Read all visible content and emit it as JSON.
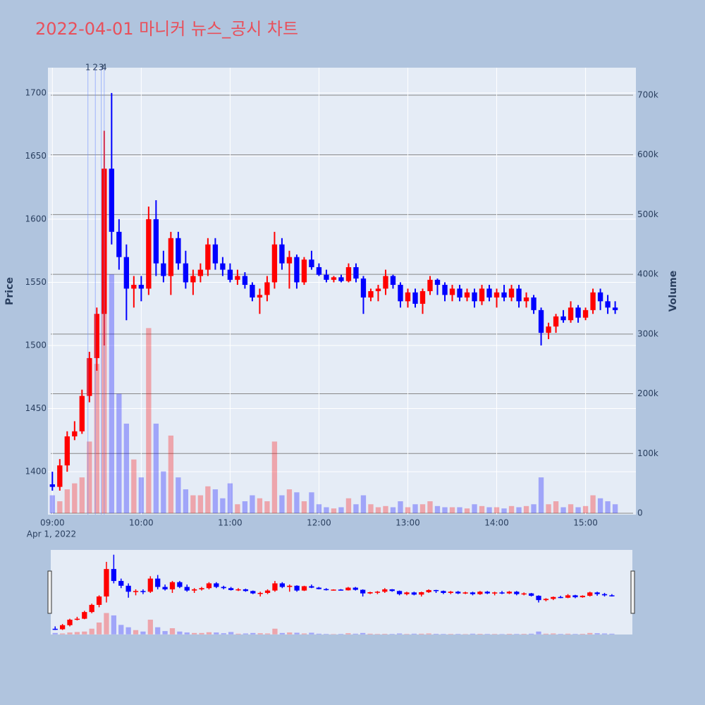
{
  "chart_data": {
    "type": "candlestick",
    "title": "2022-04-01 마니커 뉴스_공시 차트",
    "y_label": "Price",
    "y2_label": "Volume",
    "x_date_label": "Apr 1, 2022",
    "increasing_color": "#ff0000",
    "decreasing_color": "#0000ff",
    "xlim": [
      "08:57",
      "15:34"
    ],
    "xticks": [
      "09:00",
      "10:00",
      "11:00",
      "12:00",
      "13:00",
      "14:00",
      "15:00"
    ],
    "ylim": [
      1366,
      1720
    ],
    "yticks": [
      1400,
      1450,
      1500,
      1550,
      1600,
      1650,
      1700
    ],
    "y2lim": [
      -2400,
      746000
    ],
    "y2ticks": [
      0,
      {
        "value": 100000,
        "label": "100k"
      },
      {
        "value": 200000,
        "label": "200k"
      },
      {
        "value": 300000,
        "label": "300k"
      },
      {
        "value": 400000,
        "label": "400k"
      },
      {
        "value": 500000,
        "label": "500k"
      },
      {
        "value": 600000,
        "label": "600k"
      },
      {
        "value": 700000,
        "label": "700k"
      }
    ],
    "annotations": [
      {
        "x": "09:24",
        "text": "1"
      },
      {
        "x": "09:29",
        "text": "2"
      },
      {
        "x": "09:33",
        "text": "3"
      },
      {
        "x": "09:35",
        "text": "4"
      }
    ],
    "x": [
      "09:00",
      "09:05",
      "09:10",
      "09:15",
      "09:20",
      "09:25",
      "09:30",
      "09:35",
      "09:40",
      "09:45",
      "09:50",
      "09:55",
      "10:00",
      "10:05",
      "10:10",
      "10:15",
      "10:20",
      "10:25",
      "10:30",
      "10:35",
      "10:40",
      "10:45",
      "10:50",
      "10:55",
      "11:00",
      "11:05",
      "11:10",
      "11:15",
      "11:20",
      "11:25",
      "11:30",
      "11:35",
      "11:40",
      "11:45",
      "11:50",
      "11:55",
      "12:00",
      "12:05",
      "12:10",
      "12:15",
      "12:20",
      "12:25",
      "12:30",
      "12:35",
      "12:40",
      "12:45",
      "12:50",
      "12:55",
      "13:00",
      "13:05",
      "13:10",
      "13:15",
      "13:20",
      "13:25",
      "13:30",
      "13:35",
      "13:40",
      "13:45",
      "13:50",
      "13:55",
      "14:00",
      "14:05",
      "14:10",
      "14:15",
      "14:20",
      "14:25",
      "14:30",
      "14:35",
      "14:40",
      "14:45",
      "14:50",
      "14:55",
      "15:00",
      "15:05",
      "15:10",
      "15:15",
      "15:20"
    ],
    "open": [
      1390,
      1388,
      1405,
      1428,
      1432,
      1460,
      1490,
      1525,
      1640,
      1590,
      1570,
      1545,
      1548,
      1545,
      1600,
      1565,
      1555,
      1585,
      1565,
      1550,
      1555,
      1560,
      1580,
      1565,
      1560,
      1552,
      1555,
      1548,
      1538,
      1540,
      1550,
      1580,
      1565,
      1570,
      1550,
      1568,
      1562,
      1556,
      1552,
      1554,
      1551,
      1562,
      1553,
      1538,
      1543,
      1545,
      1555,
      1548,
      1535,
      1542,
      1533,
      1543,
      1552,
      1548,
      1540,
      1545,
      1538,
      1542,
      1535,
      1545,
      1538,
      1542,
      1538,
      1545,
      1535,
      1538,
      1528,
      1510,
      1515,
      1523,
      1520,
      1530,
      1522,
      1528,
      1542,
      1535,
      1530
    ],
    "high": [
      1400,
      1410,
      1432,
      1440,
      1465,
      1495,
      1530,
      1670,
      1700,
      1600,
      1580,
      1555,
      1555,
      1610,
      1615,
      1575,
      1590,
      1590,
      1575,
      1560,
      1565,
      1585,
      1585,
      1570,
      1565,
      1560,
      1558,
      1550,
      1545,
      1555,
      1590,
      1585,
      1575,
      1572,
      1570,
      1575,
      1565,
      1560,
      1555,
      1556,
      1565,
      1565,
      1555,
      1545,
      1548,
      1560,
      1556,
      1550,
      1545,
      1545,
      1545,
      1555,
      1553,
      1550,
      1548,
      1548,
      1545,
      1545,
      1548,
      1548,
      1545,
      1548,
      1548,
      1548,
      1542,
      1540,
      1530,
      1518,
      1525,
      1528,
      1535,
      1532,
      1530,
      1545,
      1545,
      1540,
      1535
    ],
    "low": [
      1385,
      1385,
      1400,
      1425,
      1430,
      1455,
      1480,
      1500,
      1580,
      1560,
      1520,
      1530,
      1535,
      1540,
      1555,
      1550,
      1540,
      1560,
      1545,
      1540,
      1550,
      1555,
      1560,
      1555,
      1550,
      1548,
      1545,
      1535,
      1525,
      1535,
      1545,
      1560,
      1545,
      1545,
      1548,
      1560,
      1555,
      1550,
      1550,
      1550,
      1550,
      1550,
      1525,
      1535,
      1535,
      1540,
      1545,
      1530,
      1530,
      1530,
      1525,
      1540,
      1540,
      1535,
      1535,
      1535,
      1535,
      1530,
      1532,
      1535,
      1530,
      1535,
      1535,
      1530,
      1530,
      1525,
      1500,
      1505,
      1510,
      1518,
      1518,
      1518,
      1520,
      1525,
      1528,
      1525,
      1525
    ],
    "close": [
      1388,
      1405,
      1428,
      1432,
      1460,
      1490,
      1525,
      1640,
      1590,
      1570,
      1545,
      1548,
      1545,
      1600,
      1565,
      1555,
      1585,
      1565,
      1550,
      1555,
      1560,
      1580,
      1565,
      1560,
      1552,
      1555,
      1548,
      1538,
      1540,
      1550,
      1580,
      1565,
      1570,
      1550,
      1568,
      1562,
      1556,
      1552,
      1554,
      1551,
      1562,
      1553,
      1538,
      1543,
      1545,
      1555,
      1548,
      1535,
      1542,
      1533,
      1543,
      1552,
      1548,
      1540,
      1545,
      1538,
      1542,
      1535,
      1545,
      1538,
      1542,
      1538,
      1545,
      1535,
      1538,
      1528,
      1510,
      1515,
      1523,
      1520,
      1530,
      1522,
      1528,
      1542,
      1535,
      1530,
      1528
    ],
    "volume": [
      30000,
      20000,
      40000,
      50000,
      60000,
      120000,
      250000,
      450000,
      400000,
      200000,
      150000,
      90000,
      60000,
      310000,
      150000,
      70000,
      130000,
      60000,
      40000,
      30000,
      30000,
      45000,
      40000,
      25000,
      50000,
      15000,
      20000,
      30000,
      25000,
      20000,
      120000,
      30000,
      40000,
      35000,
      20000,
      35000,
      15000,
      10000,
      8000,
      10000,
      25000,
      15000,
      30000,
      15000,
      10000,
      12000,
      10000,
      20000,
      10000,
      15000,
      15000,
      20000,
      12000,
      10000,
      10000,
      10000,
      8000,
      15000,
      12000,
      10000,
      10000,
      8000,
      12000,
      10000,
      12000,
      15000,
      60000,
      15000,
      20000,
      10000,
      15000,
      10000,
      12000,
      30000,
      25000,
      20000,
      15000
    ]
  }
}
